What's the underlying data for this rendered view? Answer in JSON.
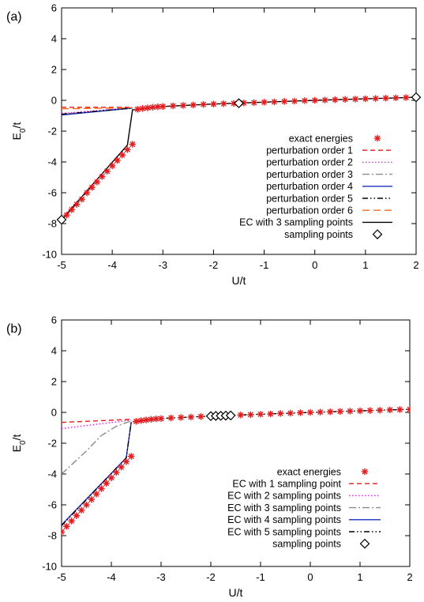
{
  "chart_data": [
    {
      "panel_label": "(a)",
      "type": "line",
      "xlabel": "U/t",
      "ylabel": "E_0/t",
      "xlim": [
        -5,
        2
      ],
      "ylim": [
        -10,
        6
      ],
      "xticks": [
        "-5",
        "-4",
        "-3",
        "-2",
        "-1",
        "0",
        "1",
        "2"
      ],
      "yticks": [
        "-10",
        "-8",
        "-6",
        "-4",
        "-2",
        "0",
        "2",
        "4",
        "6"
      ],
      "legend_position": "center-right",
      "series": [
        {
          "name": "exact energies",
          "style": "stars",
          "color": "#e41a1c",
          "x": [
            -4.9,
            -4.8,
            -4.7,
            -4.6,
            -4.5,
            -4.4,
            -4.3,
            -4.2,
            -4.1,
            -4.0,
            -3.9,
            -3.8,
            -3.7,
            -3.6,
            -3.5,
            -3.4,
            -3.3,
            -3.2,
            -3.1,
            -3.0,
            -2.8,
            -2.6,
            -2.4,
            -2.2,
            -2.0,
            -1.8,
            -1.6,
            -1.4,
            -1.2,
            -1.0,
            -0.8,
            -0.6,
            -0.4,
            -0.2,
            0.0,
            0.2,
            0.4,
            0.6,
            0.8,
            1.0,
            1.2,
            1.4,
            1.6,
            1.8,
            2.0
          ],
          "y": [
            -7.45,
            -7.1,
            -6.75,
            -6.42,
            -6.0,
            -5.65,
            -5.3,
            -4.95,
            -4.6,
            -4.25,
            -3.9,
            -3.55,
            -3.2,
            -2.85,
            -0.58,
            -0.53,
            -0.49,
            -0.45,
            -0.42,
            -0.4,
            -0.36,
            -0.33,
            -0.3,
            -0.27,
            -0.24,
            -0.22,
            -0.2,
            -0.17,
            -0.15,
            -0.12,
            -0.1,
            -0.07,
            -0.05,
            -0.02,
            0.0,
            0.02,
            0.04,
            0.06,
            0.08,
            0.1,
            0.12,
            0.14,
            0.16,
            0.18,
            0.2
          ]
        },
        {
          "name": "perturbation order 1",
          "style": "dashed",
          "color": "#e41a1c",
          "x": [
            -5.0,
            -3.6
          ],
          "y": [
            -0.45,
            -0.45
          ]
        },
        {
          "name": "perturbation order 2",
          "style": "dotted",
          "color": "#d62ad6",
          "x": [
            -5.0,
            -3.6
          ],
          "y": [
            -0.85,
            -0.48
          ]
        },
        {
          "name": "perturbation order 3",
          "style": "dashdot",
          "color": "#8c8c8c",
          "x": [
            -5.0,
            -3.6
          ],
          "y": [
            -0.92,
            -0.5
          ]
        },
        {
          "name": "perturbation order 4",
          "style": "solid",
          "color": "#1f2fbf",
          "x": [
            -5.0,
            -3.6
          ],
          "y": [
            -0.95,
            -0.5
          ]
        },
        {
          "name": "perturbation order 5",
          "style": "dashdotdot",
          "color": "#000000",
          "x": [
            -5.0,
            -3.6
          ],
          "y": [
            -0.9,
            -0.5
          ]
        },
        {
          "name": "perturbation order 6",
          "style": "longdash",
          "color": "#ff6a1a",
          "x": [
            -5.0,
            -3.6
          ],
          "y": [
            -0.55,
            -0.48
          ]
        },
        {
          "name": "EC with 3 sampling points",
          "style": "solid",
          "color": "#000000",
          "x": [
            -5.0,
            -3.7,
            -3.6,
            -3.0,
            -2.0,
            -1.0,
            0.0,
            1.0,
            2.0
          ],
          "y": [
            -7.75,
            -2.9,
            -0.62,
            -0.4,
            -0.24,
            -0.12,
            0.0,
            0.1,
            0.2
          ]
        },
        {
          "name": "sampling points",
          "style": "diamonds",
          "color": "#000000",
          "x": [
            -5.0,
            -1.5,
            2.0
          ],
          "y": [
            -7.75,
            -0.19,
            0.2
          ]
        }
      ]
    },
    {
      "panel_label": "(b)",
      "type": "line",
      "xlabel": "U/t",
      "ylabel": "E_0/t",
      "xlim": [
        -5,
        2
      ],
      "ylim": [
        -10,
        6
      ],
      "xticks": [
        "-5",
        "-4",
        "-3",
        "-2",
        "-1",
        "0",
        "1",
        "2"
      ],
      "yticks": [
        "-10",
        "-8",
        "-6",
        "-4",
        "-2",
        "0",
        "2",
        "4",
        "6"
      ],
      "legend_position": "center-right",
      "series": [
        {
          "name": "exact energies",
          "style": "stars",
          "color": "#e41a1c",
          "x": [
            -5.0,
            -4.9,
            -4.8,
            -4.7,
            -4.6,
            -4.5,
            -4.4,
            -4.3,
            -4.2,
            -4.1,
            -4.0,
            -3.9,
            -3.8,
            -3.7,
            -3.6,
            -3.5,
            -3.4,
            -3.3,
            -3.2,
            -3.1,
            -3.0,
            -2.8,
            -2.6,
            -2.4,
            -2.2,
            -2.0,
            -1.8,
            -1.6,
            -1.4,
            -1.2,
            -1.0,
            -0.8,
            -0.6,
            -0.4,
            -0.2,
            0.0,
            0.2,
            0.4,
            0.6,
            0.8,
            1.0,
            1.2,
            1.4,
            1.6,
            1.8,
            2.0
          ],
          "y": [
            -7.75,
            -7.4,
            -7.05,
            -6.7,
            -6.35,
            -6.0,
            -5.65,
            -5.3,
            -4.95,
            -4.6,
            -4.25,
            -3.9,
            -3.55,
            -3.2,
            -2.85,
            -0.58,
            -0.53,
            -0.49,
            -0.45,
            -0.42,
            -0.4,
            -0.36,
            -0.33,
            -0.3,
            -0.27,
            -0.24,
            -0.22,
            -0.2,
            -0.17,
            -0.15,
            -0.12,
            -0.1,
            -0.07,
            -0.05,
            -0.02,
            0.0,
            0.02,
            0.04,
            0.06,
            0.08,
            0.1,
            0.12,
            0.14,
            0.16,
            0.18,
            0.2
          ]
        },
        {
          "name": "EC with 1 sampling point",
          "style": "dashed",
          "color": "#e41a1c",
          "x": [
            -5.0,
            -3.6
          ],
          "y": [
            -0.65,
            -0.45
          ]
        },
        {
          "name": "EC with 2 sampling points",
          "style": "dotted",
          "color": "#d62ad6",
          "x": [
            -5.0,
            -3.6
          ],
          "y": [
            -1.05,
            -0.5
          ]
        },
        {
          "name": "EC with 3 sampling points",
          "style": "dashdot",
          "color": "#8c8c8c",
          "x": [
            -5.0,
            -4.5,
            -4.2,
            -3.9,
            -3.6
          ],
          "y": [
            -4.0,
            -2.5,
            -1.5,
            -0.9,
            -0.55
          ]
        },
        {
          "name": "EC with 4 sampling points",
          "style": "solid",
          "color": "#1f2fbf",
          "x": [
            -5.0,
            -3.7,
            -3.6
          ],
          "y": [
            -7.3,
            -2.95,
            -0.62
          ]
        },
        {
          "name": "EC with 5 sampling points",
          "style": "dashdotdot",
          "color": "#000000",
          "x": [
            -5.0,
            -3.7,
            -3.6,
            -3.0,
            -2.0,
            -1.0,
            0.0,
            1.0,
            2.0
          ],
          "y": [
            -7.35,
            -2.95,
            -0.62,
            -0.4,
            -0.24,
            -0.12,
            0.0,
            0.1,
            0.2
          ]
        },
        {
          "name": "sampling points",
          "style": "diamonds",
          "color": "#000000",
          "x": [
            -2.0,
            -1.9,
            -1.8,
            -1.7,
            -1.6
          ],
          "y": [
            -0.24,
            -0.23,
            -0.22,
            -0.21,
            -0.2
          ]
        }
      ]
    }
  ]
}
